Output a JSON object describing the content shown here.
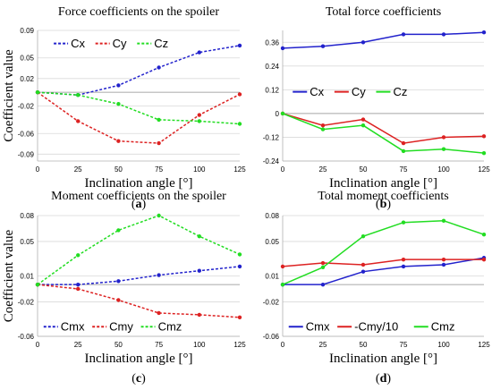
{
  "chart_data": [
    {
      "type": "line",
      "title": "Force coefficients on the spoiler",
      "xlabel": "Inclination angle [°]",
      "ylabel": "Coefficient value",
      "panel_label": "(a)",
      "x": [
        0,
        25,
        50,
        75,
        100,
        125
      ],
      "x_ticks": [
        "0",
        "25",
        "50",
        "75",
        "100",
        "125"
      ],
      "ylim": [
        -0.1,
        0.09
      ],
      "y_ticks": [
        "0.09",
        "0.05",
        "0.02",
        "-0.02",
        "-0.06",
        "-0.09"
      ],
      "y_tick_values": [
        0.09,
        0.05,
        0.02,
        -0.02,
        -0.06,
        -0.09
      ],
      "grid": true,
      "legend_position": "top-left",
      "series": [
        {
          "name": "Cx",
          "color": "#2222cc",
          "dashed": true,
          "values": [
            0,
            -0.004,
            0.01,
            0.036,
            0.058,
            0.068
          ]
        },
        {
          "name": "Cy",
          "color": "#dd2222",
          "dashed": true,
          "values": [
            0,
            -0.042,
            -0.071,
            -0.074,
            -0.033,
            -0.003
          ]
        },
        {
          "name": "Cz",
          "color": "#22dd22",
          "dashed": true,
          "values": [
            0,
            -0.004,
            -0.017,
            -0.04,
            -0.042,
            -0.046
          ]
        }
      ]
    },
    {
      "type": "line",
      "title": "Total force coefficients",
      "xlabel": "Inclination angle [°]",
      "ylabel": "",
      "panel_label": "(b)",
      "x": [
        0,
        25,
        50,
        75,
        100,
        125
      ],
      "x_ticks": [
        "0",
        "25",
        "50",
        "75",
        "100",
        "125"
      ],
      "ylim": [
        -0.24,
        0.42
      ],
      "y_ticks": [
        "0.36",
        "0.24",
        "0.12",
        "0",
        "-0.12",
        "-0.24"
      ],
      "y_tick_values": [
        0.36,
        0.24,
        0.12,
        0,
        -0.12,
        -0.24
      ],
      "grid": true,
      "legend_position": "middle-left",
      "series": [
        {
          "name": "Cx",
          "color": "#2222cc",
          "dashed": false,
          "values": [
            0.33,
            0.34,
            0.36,
            0.4,
            0.4,
            0.41
          ]
        },
        {
          "name": "Cy",
          "color": "#dd2222",
          "dashed": false,
          "values": [
            0,
            -0.06,
            -0.03,
            -0.15,
            -0.12,
            -0.115
          ]
        },
        {
          "name": "Cz",
          "color": "#22dd22",
          "dashed": false,
          "values": [
            0,
            -0.08,
            -0.06,
            -0.19,
            -0.18,
            -0.2
          ]
        }
      ]
    },
    {
      "type": "line",
      "title": "Moment coefficients on the spoiler",
      "xlabel": "Inclination angle [°]",
      "ylabel": "Coefficient value",
      "panel_label": "(c)",
      "x": [
        0,
        25,
        50,
        75,
        100,
        125
      ],
      "x_ticks": [
        "0",
        "25",
        "50",
        "75",
        "100",
        "125"
      ],
      "ylim": [
        -0.06,
        0.08
      ],
      "y_ticks": [
        "0.08",
        "0.05",
        "0.01",
        "-0.02",
        "-0.06"
      ],
      "y_tick_values": [
        0.08,
        0.05,
        0.01,
        -0.02,
        -0.06
      ],
      "grid": true,
      "legend_position": "bottom-left",
      "series": [
        {
          "name": "Cmx",
          "color": "#2222cc",
          "dashed": true,
          "values": [
            0,
            0,
            0.004,
            0.011,
            0.016,
            0.021
          ]
        },
        {
          "name": "Cmy",
          "color": "#dd2222",
          "dashed": true,
          "values": [
            0,
            -0.005,
            -0.018,
            -0.033,
            -0.035,
            -0.038
          ]
        },
        {
          "name": "Cmz",
          "color": "#22dd22",
          "dashed": true,
          "values": [
            0,
            0.034,
            0.063,
            0.08,
            0.056,
            0.035
          ]
        }
      ]
    },
    {
      "type": "line",
      "title": "Total moment coefficients",
      "xlabel": "Inclination angle [°]",
      "ylabel": "",
      "panel_label": "(d)",
      "x": [
        0,
        25,
        50,
        75,
        100,
        125
      ],
      "x_ticks": [
        "0",
        "25",
        "50",
        "75",
        "100",
        "125"
      ],
      "ylim": [
        -0.06,
        0.08
      ],
      "y_ticks": [
        "0.08",
        "0.05",
        "0.01",
        "-0.02",
        "-0.06"
      ],
      "y_tick_values": [
        0.08,
        0.05,
        0.01,
        -0.02,
        -0.06
      ],
      "grid": true,
      "legend_position": "bottom-left",
      "series": [
        {
          "name": "Cmx",
          "color": "#2222cc",
          "dashed": false,
          "values": [
            0,
            0,
            0.015,
            0.021,
            0.023,
            0.031
          ]
        },
        {
          "name": "-Cmy/10",
          "color": "#dd2222",
          "dashed": false,
          "values": [
            0.021,
            0.025,
            0.023,
            0.029,
            0.029,
            0.029
          ]
        },
        {
          "name": "Cmz",
          "color": "#22dd22",
          "dashed": false,
          "values": [
            0,
            0.02,
            0.056,
            0.072,
            0.074,
            0.058
          ]
        }
      ]
    }
  ]
}
